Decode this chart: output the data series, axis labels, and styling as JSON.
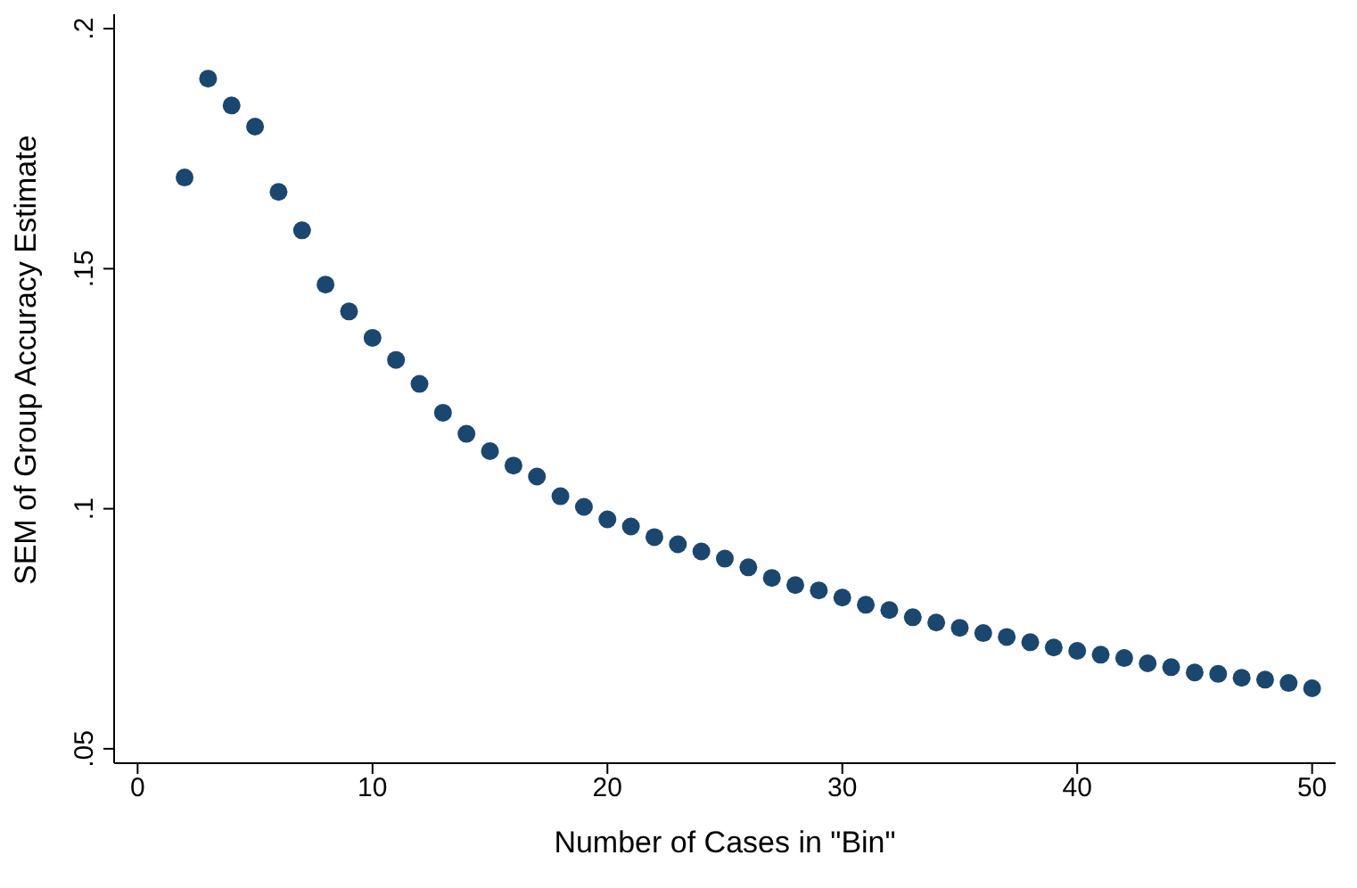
{
  "chart_data": {
    "type": "scatter",
    "xlabel": "Number of Cases in \"Bin\"",
    "ylabel": "SEM of Group Accuracy Estimate",
    "x": [
      2,
      3,
      4,
      5,
      6,
      7,
      8,
      9,
      10,
      11,
      12,
      13,
      14,
      15,
      16,
      17,
      18,
      19,
      20,
      21,
      22,
      23,
      24,
      25,
      26,
      27,
      28,
      29,
      30,
      31,
      32,
      33,
      34,
      35,
      36,
      37,
      38,
      39,
      40,
      41,
      42,
      43,
      44,
      45,
      46,
      47,
      48,
      49,
      50
    ],
    "series": [
      {
        "color": "#1a476f",
        "values": [
          0.169,
          0.1896,
          0.184,
          0.1796,
          0.166,
          0.158,
          0.1467,
          0.1411,
          0.1356,
          0.131,
          0.126,
          0.12,
          0.1156,
          0.112,
          0.109,
          0.1067,
          0.1026,
          0.1004,
          0.0978,
          0.0963,
          0.0941,
          0.0926,
          0.0911,
          0.0896,
          0.0878,
          0.0856,
          0.0841,
          0.083,
          0.0815,
          0.08,
          0.0789,
          0.0774,
          0.0763,
          0.0752,
          0.0741,
          0.0733,
          0.0722,
          0.0711,
          0.0704,
          0.0696,
          0.0689,
          0.0678,
          0.067,
          0.0659,
          0.0656,
          0.0648,
          0.0644,
          0.0637,
          0.0626
        ]
      }
    ],
    "xlim": [
      -1,
      51
    ],
    "xticks": [
      0,
      10,
      20,
      30,
      40,
      50
    ],
    "ylim": [
      0.047,
      0.203
    ],
    "yticks": [
      {
        "value": 0.05,
        "label": ".05"
      },
      {
        "value": 0.1,
        "label": ".1"
      },
      {
        "value": 0.15,
        "label": ".15"
      },
      {
        "value": 0.2,
        "label": ".2"
      }
    ],
    "grid": false,
    "legend": false,
    "marker": "circle"
  }
}
